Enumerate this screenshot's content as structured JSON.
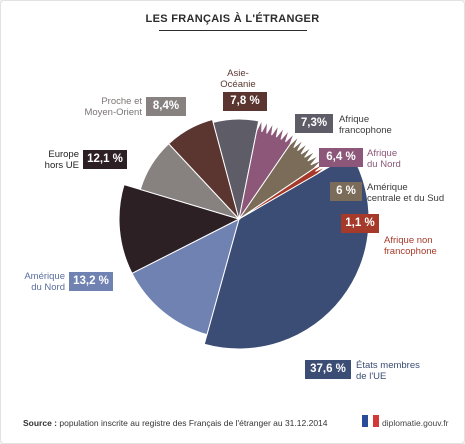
{
  "title": "LES FRANÇAIS À L'ÉTRANGER",
  "source_label": "Source :",
  "source_text": " population inscrite au registre des Français de l'étranger au 31.12.2014",
  "logo_text": "diplomatie.gouv.fr",
  "chart_data": {
    "type": "pie",
    "title": "LES FRANÇAIS À L'ÉTRANGER",
    "slices": [
      {
        "label": "États membres\nde l'UE",
        "value": 37.6,
        "display": "37,6 %",
        "color": "#3b4d74",
        "label_color": "#3b4d74"
      },
      {
        "label": "Amérique\ndu Nord",
        "value": 13.2,
        "display": "13,2 %",
        "color": "#6f82b2",
        "label_color": "#5b6e9e"
      },
      {
        "label": "Europe\nhors UE",
        "value": 12.1,
        "display": "12,1 %",
        "color": "#2d2024",
        "label_color": "#222222"
      },
      {
        "label": "Proche et\nMoyen-Orient",
        "value": 8.4,
        "display": "8,4%",
        "color": "#878280",
        "label_color": "#7a7574"
      },
      {
        "label": "Asie-\nOcéanie",
        "value": 7.8,
        "display": "7,8 %",
        "color": "#5b3630",
        "label_color": "#5b3630"
      },
      {
        "label": "Afrique\nfrancophone",
        "value": 7.3,
        "display": "7,3%",
        "color": "#5e5c66",
        "label_color": "#3a3a3a"
      },
      {
        "label": "Afrique\ndu Nord",
        "value": 6.4,
        "display": "6,4 %",
        "color": "#8c5779",
        "label_color": "#8c5779"
      },
      {
        "label": "Amérique\ncentrale et du Sud",
        "value": 6.0,
        "display": "6 %",
        "color": "#7a6c58",
        "label_color": "#3a3a3a"
      },
      {
        "label": "Afrique non\nfrancophone",
        "value": 1.1,
        "display": "1,1 %",
        "color": "#a63a2a",
        "label_color": "#a63a2a"
      }
    ]
  }
}
